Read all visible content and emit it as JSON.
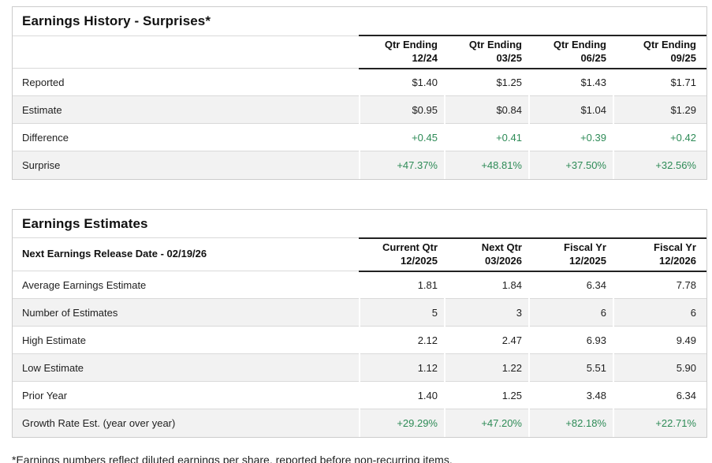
{
  "page": {
    "footnote": "*Earnings numbers reflect diluted earnings per share, reported before non-recurring items."
  },
  "colors": {
    "positive_value_green": "#2E8B57",
    "stripe_gray": "#f2f2f2",
    "header_border_dark": "#222222",
    "row_border_gray": "#d9d9d9",
    "table_border_gray": "#cccccc"
  },
  "tables": [
    {
      "title": "Earnings History - Surprises*",
      "label_header": "",
      "columns": [
        "Qtr Ending\n12/24",
        "Qtr Ending\n03/25",
        "Qtr Ending\n06/25",
        "Qtr Ending\n09/25"
      ],
      "rows": [
        {
          "label": "Reported",
          "values": [
            "$1.40",
            "$1.25",
            "$1.43",
            "$1.71"
          ]
        },
        {
          "label": "Estimate",
          "values": [
            "$0.95",
            "$0.84",
            "$1.04",
            "$1.29"
          ]
        },
        {
          "label": "Difference",
          "values": [
            "+0.45",
            "+0.41",
            "+0.39",
            "+0.42"
          ]
        },
        {
          "label": "Surprise",
          "values": [
            "+47.37%",
            "+48.81%",
            "+37.50%",
            "+32.56%"
          ]
        }
      ]
    },
    {
      "title": "Earnings Estimates",
      "label_header": "Next Earnings Release Date - 02/19/26",
      "columns": [
        "Current Qtr\n12/2025",
        "Next Qtr\n03/2026",
        "Fiscal Yr\n12/2025",
        "Fiscal Yr\n12/2026"
      ],
      "rows": [
        {
          "label": "Average Earnings Estimate",
          "values": [
            "1.81",
            "1.84",
            "6.34",
            "7.78"
          ]
        },
        {
          "label": "Number of Estimates",
          "values": [
            "5",
            "3",
            "6",
            "6"
          ]
        },
        {
          "label": "High Estimate",
          "values": [
            "2.12",
            "2.47",
            "6.93",
            "9.49"
          ]
        },
        {
          "label": "Low Estimate",
          "values": [
            "1.12",
            "1.22",
            "5.51",
            "5.90"
          ]
        },
        {
          "label": "Prior Year",
          "values": [
            "1.40",
            "1.25",
            "3.48",
            "6.34"
          ]
        },
        {
          "label": "Growth Rate Est. (year over year)",
          "values": [
            "+29.29%",
            "+47.20%",
            "+82.18%",
            "+22.71%"
          ]
        }
      ]
    }
  ]
}
